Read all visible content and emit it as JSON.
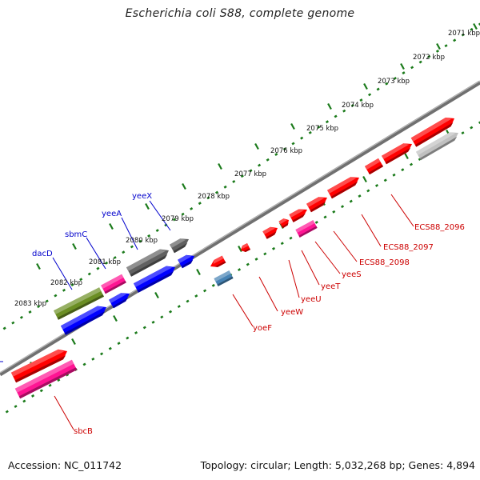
{
  "title": "Escherichia coli S88, complete genome",
  "footer": {
    "accession": "Accession: NC_011742",
    "summary": "Topology: circular; Length: 5,032,268 bp; Genes: 4,894"
  },
  "scale_labels": [
    "2071 kbp",
    "2072 kbp",
    "2073 kbp",
    "2074 kbp",
    "2075 kbp",
    "2076 kbp",
    "2077 kbp",
    "2078 kbp",
    "2079 kbp",
    "2080 kbp",
    "2081 kbp",
    "2082 kbp",
    "2083 kbp"
  ],
  "upper_gene_labels": [
    "yeeX",
    "yeeA",
    "sbmC",
    "dacD"
  ],
  "lower_gene_labels": [
    "ECS88_2096",
    "ECS88_2097",
    "ECS88_2098",
    "yeeS",
    "yeeT",
    "yeeU",
    "yeeW",
    "yoeF",
    "sbcB"
  ],
  "colors": {
    "backbone": "#808080",
    "gene_red": "#ff0000",
    "gene_blue": "#0000ff",
    "gene_gray": "#606060",
    "gene_light_gray": "#c0c0c0",
    "gene_magenta": "#ff1493",
    "gene_olive": "#6b8e23",
    "gene_steel_blue": "#4682b4",
    "label_blue": "#0000cc",
    "label_red": "#cc0000",
    "tick_green": "#1a7a1a"
  }
}
